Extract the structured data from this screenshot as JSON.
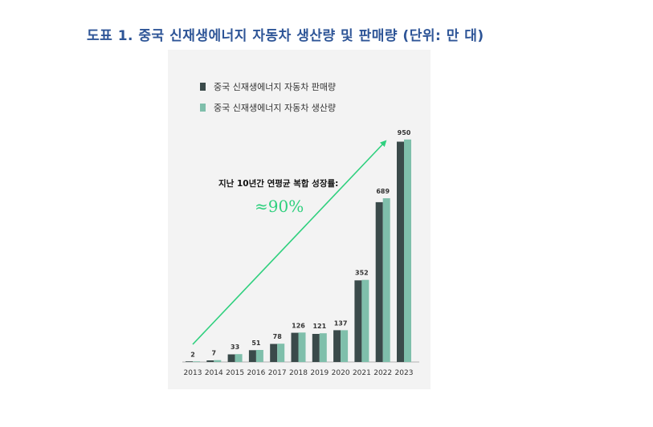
{
  "page": {
    "title": "도표 1. 중국 신재생에너지 자동차 생산량 및 판매량 (단위: 만 대)"
  },
  "chart_data": {
    "type": "bar",
    "title": "도표 1. 중국 신재생에너지 자동차 생산량 및 판매량 (단위: 만 대)",
    "categories": [
      "2013",
      "2014",
      "2015",
      "2016",
      "2017",
      "2018",
      "2019",
      "2020",
      "2021",
      "2022",
      "2023"
    ],
    "series": [
      {
        "name": "중국 신재생에너지 자동차 판매량",
        "color": "#3a4a4a",
        "values": [
          2,
          7,
          33,
          51,
          78,
          126,
          121,
          137,
          352,
          689,
          950
        ]
      },
      {
        "name": "중국 신재생에너지 자동차 생산량",
        "color": "#7fbfab",
        "values": [
          2,
          8,
          34,
          52,
          79,
          127,
          124,
          137,
          354,
          706,
          959
        ]
      }
    ],
    "data_labels": [
      "2",
      "7",
      "33",
      "51",
      "78",
      "126",
      "121",
      "137",
      "352",
      "689",
      "950"
    ],
    "ylim": [
      0,
      1000
    ],
    "grid": false,
    "legend_position": "top-left",
    "annotations": {
      "growth_label": "지난 10년간 연평균 복합 성장률:",
      "growth_value": "≈90%",
      "arrow_color": "#2fd07e"
    }
  }
}
